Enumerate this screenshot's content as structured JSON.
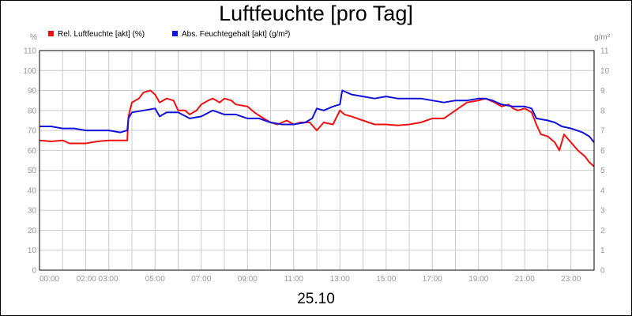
{
  "chart_data": {
    "type": "line",
    "title": "Luftfeuchte [pro Tag]",
    "date_label": "25.10",
    "left_unit": "%",
    "right_unit": "g/m³",
    "legend_placement": "top-left",
    "grid": true,
    "x_ticks": [
      "00:00",
      "02:00 03:00",
      "05:00",
      "07:00",
      "09:00",
      "11:00",
      "13:00",
      "15:00",
      "17:00",
      "19:00",
      "21:00",
      "23:00"
    ],
    "x_tick_hours": [
      0,
      2.5,
      5,
      7,
      9,
      11,
      13,
      15,
      17,
      19,
      21,
      23
    ],
    "xlim": [
      0,
      24
    ],
    "y_left_ticks": [
      "0",
      "10",
      "20",
      "30",
      "40",
      "50",
      "60",
      "70",
      "80",
      "90",
      "100",
      "110"
    ],
    "y_right_ticks": [
      "0",
      "1",
      "2",
      "3",
      "4",
      "5",
      "6",
      "7",
      "8",
      "9",
      "10",
      "11"
    ],
    "ylim_left": [
      0,
      110
    ],
    "ylim_right": [
      0,
      11
    ],
    "series": [
      {
        "name": "Rel. Luftfeuchte [akt] (%)",
        "axis": "left",
        "color": "#ee1111",
        "points": [
          [
            0,
            65
          ],
          [
            0.5,
            64.5
          ],
          [
            1,
            65
          ],
          [
            1.3,
            63.5
          ],
          [
            2,
            63.5
          ],
          [
            2.5,
            64.5
          ],
          [
            3,
            65
          ],
          [
            3.5,
            65
          ],
          [
            3.8,
            65
          ],
          [
            3.85,
            77
          ],
          [
            4,
            84
          ],
          [
            4.3,
            86
          ],
          [
            4.5,
            89
          ],
          [
            4.8,
            90
          ],
          [
            5,
            88
          ],
          [
            5.2,
            84
          ],
          [
            5.5,
            86
          ],
          [
            5.8,
            85
          ],
          [
            6,
            80
          ],
          [
            6.3,
            80
          ],
          [
            6.5,
            78
          ],
          [
            6.8,
            80
          ],
          [
            7,
            83
          ],
          [
            7.3,
            85
          ],
          [
            7.5,
            86
          ],
          [
            7.8,
            84
          ],
          [
            8,
            86
          ],
          [
            8.3,
            85
          ],
          [
            8.5,
            83
          ],
          [
            9,
            82
          ],
          [
            9.3,
            79
          ],
          [
            9.7,
            76
          ],
          [
            10,
            74
          ],
          [
            10.3,
            73
          ],
          [
            10.7,
            75
          ],
          [
            11,
            73
          ],
          [
            11.3,
            74
          ],
          [
            11.7,
            74
          ],
          [
            12,
            70
          ],
          [
            12.3,
            74
          ],
          [
            12.7,
            73
          ],
          [
            13,
            80
          ],
          [
            13.2,
            78
          ],
          [
            13.5,
            77
          ],
          [
            14,
            75
          ],
          [
            14.5,
            73
          ],
          [
            15,
            73
          ],
          [
            15.5,
            72.5
          ],
          [
            16,
            73
          ],
          [
            16.5,
            74
          ],
          [
            17,
            76
          ],
          [
            17.5,
            76
          ],
          [
            18,
            80
          ],
          [
            18.5,
            84
          ],
          [
            19,
            85
          ],
          [
            19.3,
            86
          ],
          [
            19.5,
            85
          ],
          [
            19.7,
            84
          ],
          [
            20,
            82
          ],
          [
            20.3,
            83
          ],
          [
            20.5,
            81
          ],
          [
            20.7,
            80
          ],
          [
            21,
            81
          ],
          [
            21.3,
            79
          ],
          [
            21.5,
            73
          ],
          [
            21.7,
            68
          ],
          [
            22,
            67
          ],
          [
            22.3,
            64
          ],
          [
            22.5,
            60
          ],
          [
            22.7,
            68
          ],
          [
            23,
            64
          ],
          [
            23.3,
            60
          ],
          [
            23.6,
            57
          ],
          [
            23.8,
            54
          ],
          [
            24,
            52
          ]
        ]
      },
      {
        "name": "Abs. Feuchtegehalt [akt] (g/m³)",
        "axis": "right",
        "color": "#1111dd",
        "points": [
          [
            0,
            7.2
          ],
          [
            0.5,
            7.2
          ],
          [
            1,
            7.1
          ],
          [
            1.5,
            7.1
          ],
          [
            2,
            7.0
          ],
          [
            2.5,
            7.0
          ],
          [
            3,
            7.0
          ],
          [
            3.5,
            6.9
          ],
          [
            3.8,
            7.0
          ],
          [
            3.85,
            7.6
          ],
          [
            4,
            7.9
          ],
          [
            4.5,
            8.0
          ],
          [
            5,
            8.1
          ],
          [
            5.2,
            7.7
          ],
          [
            5.5,
            7.9
          ],
          [
            6,
            7.9
          ],
          [
            6.5,
            7.6
          ],
          [
            7,
            7.7
          ],
          [
            7.5,
            8.0
          ],
          [
            8,
            7.8
          ],
          [
            8.5,
            7.8
          ],
          [
            9,
            7.6
          ],
          [
            9.5,
            7.6
          ],
          [
            10,
            7.4
          ],
          [
            10.5,
            7.3
          ],
          [
            11,
            7.3
          ],
          [
            11.5,
            7.4
          ],
          [
            11.8,
            7.6
          ],
          [
            12,
            8.1
          ],
          [
            12.3,
            8.0
          ],
          [
            12.7,
            8.2
          ],
          [
            13,
            8.3
          ],
          [
            13.1,
            9.0
          ],
          [
            13.5,
            8.8
          ],
          [
            14,
            8.7
          ],
          [
            14.5,
            8.6
          ],
          [
            15,
            8.7
          ],
          [
            15.5,
            8.6
          ],
          [
            16,
            8.6
          ],
          [
            16.5,
            8.6
          ],
          [
            17,
            8.5
          ],
          [
            17.5,
            8.4
          ],
          [
            18,
            8.5
          ],
          [
            18.5,
            8.5
          ],
          [
            19,
            8.6
          ],
          [
            19.3,
            8.6
          ],
          [
            19.6,
            8.5
          ],
          [
            20,
            8.3
          ],
          [
            20.5,
            8.2
          ],
          [
            21,
            8.2
          ],
          [
            21.3,
            8.1
          ],
          [
            21.5,
            7.6
          ],
          [
            22,
            7.5
          ],
          [
            22.3,
            7.4
          ],
          [
            22.6,
            7.2
          ],
          [
            23,
            7.1
          ],
          [
            23.5,
            6.9
          ],
          [
            23.8,
            6.7
          ],
          [
            24,
            6.4
          ]
        ]
      }
    ]
  }
}
